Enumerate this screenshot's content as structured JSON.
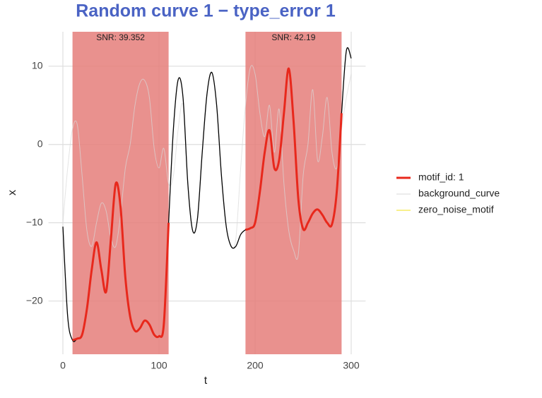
{
  "chart_data": {
    "type": "line",
    "title": "Random curve 1 − type_error 1",
    "x_label": "t",
    "y_label": "x",
    "xlim": [
      -15,
      315
    ],
    "ylim": [
      -26.8,
      14.4
    ],
    "xticks": [
      0,
      100,
      200,
      300
    ],
    "yticks": [
      {
        "value": -20,
        "label": "−20"
      },
      {
        "value": -10,
        "label": "−10"
      },
      0,
      10
    ],
    "grid": true,
    "regions": [
      {
        "xmin": 10,
        "xmax": 110,
        "label": "SNR: 39.352",
        "color": "#e57e7a"
      },
      {
        "xmin": 190,
        "xmax": 290,
        "label": "SNR: 42.19",
        "color": "#e57e7a"
      }
    ],
    "series": [
      {
        "name": "motif_id: 1",
        "color": "#e8281c",
        "x": [
          10,
          15,
          20,
          25,
          30,
          35,
          40,
          45,
          50,
          55,
          60,
          65,
          70,
          75,
          80,
          85,
          90,
          95,
          100,
          105,
          110,
          null,
          190,
          195,
          200,
          205,
          210,
          215,
          220,
          225,
          230,
          235,
          240,
          245,
          250,
          255,
          260,
          265,
          270,
          275,
          280,
          285,
          290
        ],
        "values": [
          -25,
          -24.8,
          -24.3,
          -21,
          -16,
          -12.5,
          -16,
          -18.8,
          -12,
          -5,
          -8,
          -17,
          -22,
          -23.8,
          -23.5,
          -22.5,
          -23,
          -24.3,
          -24.5,
          -23,
          -10,
          null,
          -10.9,
          -10.7,
          -10,
          -6,
          -1,
          1.8,
          -3,
          -2,
          4,
          9.7,
          3,
          -7,
          -10.8,
          -10,
          -8.8,
          -8.3,
          -9,
          -10,
          -10.2,
          -6,
          4
        ]
      },
      {
        "name": "background_curve",
        "color": "#d9d9d9",
        "x": [
          0,
          5,
          10,
          15,
          20,
          25,
          30,
          35,
          40,
          45,
          50,
          55,
          60,
          65,
          70,
          75,
          80,
          85,
          90,
          95,
          100,
          105,
          110,
          115,
          120,
          125,
          130,
          135,
          140,
          145,
          150,
          155,
          160,
          165,
          170,
          175,
          180,
          185,
          190,
          195,
          200,
          205,
          210,
          215,
          220,
          225,
          230,
          235,
          240,
          245,
          250,
          255,
          260,
          265,
          270,
          275,
          280,
          285,
          290,
          295,
          300
        ],
        "values": [
          -10,
          -3,
          2,
          2.5,
          -4,
          -11,
          -13,
          -10,
          -7.5,
          -8.5,
          -12,
          -13,
          -9,
          -3,
          0,
          5,
          7.8,
          8.2,
          6,
          -0.5,
          -3,
          -0.5,
          -5,
          -4,
          2,
          5,
          -5,
          -11,
          -9.5,
          -1,
          6.5,
          9.2,
          5,
          -4,
          -10.5,
          -13,
          -12,
          -3,
          5,
          9.8,
          9,
          4,
          1,
          5,
          -1,
          4.5,
          -5,
          -11,
          -13.5,
          -14,
          -4,
          0,
          7,
          -2,
          1,
          6,
          -1,
          -3,
          2,
          6,
          9
        ]
      },
      {
        "name": "zero_noise_motif",
        "color": "#f2e21a",
        "x": [
          10,
          15,
          20,
          25,
          30,
          35,
          40,
          45,
          50,
          55,
          60,
          65,
          70,
          75,
          80,
          85,
          90,
          95,
          100,
          105,
          110,
          null,
          190,
          195,
          200,
          205,
          210,
          215,
          220,
          225,
          230,
          235,
          240,
          245,
          250,
          255,
          260,
          265,
          270,
          275,
          280,
          285,
          290
        ],
        "values": [
          -25,
          -24.8,
          -24.3,
          -21,
          -16,
          -12.5,
          -16,
          -18.8,
          -12,
          -5,
          -8,
          -17,
          -22,
          -23.8,
          -23.5,
          -22.5,
          -23,
          -24.3,
          -24.5,
          -23,
          -10,
          null,
          -10.9,
          -10.7,
          -10,
          -6,
          -1,
          1.8,
          -3,
          -2,
          4,
          9.7,
          3,
          -7,
          -10.8,
          -10,
          -8.8,
          -8.3,
          -9,
          -10,
          -10.2,
          -6,
          4
        ]
      },
      {
        "color": "#000000",
        "x": [
          0,
          5,
          10,
          15,
          20,
          25,
          30,
          35,
          40,
          45,
          50,
          55,
          60,
          65,
          70,
          75,
          80,
          85,
          90,
          95,
          100,
          105,
          110,
          115,
          120,
          125,
          130,
          135,
          140,
          145,
          150,
          155,
          160,
          165,
          170,
          175,
          180,
          185,
          190,
          195,
          200,
          205,
          210,
          215,
          220,
          225,
          230,
          235,
          240,
          245,
          250,
          255,
          260,
          265,
          270,
          275,
          280,
          285,
          290,
          295,
          300
        ],
        "values": [
          -10.5,
          -22,
          -25,
          -24.8,
          -24.3,
          -21,
          -16,
          -12.5,
          -16,
          -18.8,
          -12,
          -5,
          -8,
          -17,
          -22,
          -23.8,
          -23.5,
          -22.5,
          -23,
          -24.3,
          -24.5,
          -23,
          -10,
          2,
          8.3,
          6,
          -5,
          -11,
          -9.5,
          -1,
          6.5,
          9.2,
          5,
          -4,
          -10.5,
          -13,
          -13,
          -11.5,
          -10.9,
          -10.7,
          -10,
          -6,
          -1,
          1.8,
          -3,
          -2,
          4,
          9.7,
          3,
          -7,
          -10.8,
          -10,
          -8.8,
          -8.3,
          -9,
          -10,
          -10.2,
          -6,
          4,
          12,
          11
        ]
      }
    ]
  }
}
